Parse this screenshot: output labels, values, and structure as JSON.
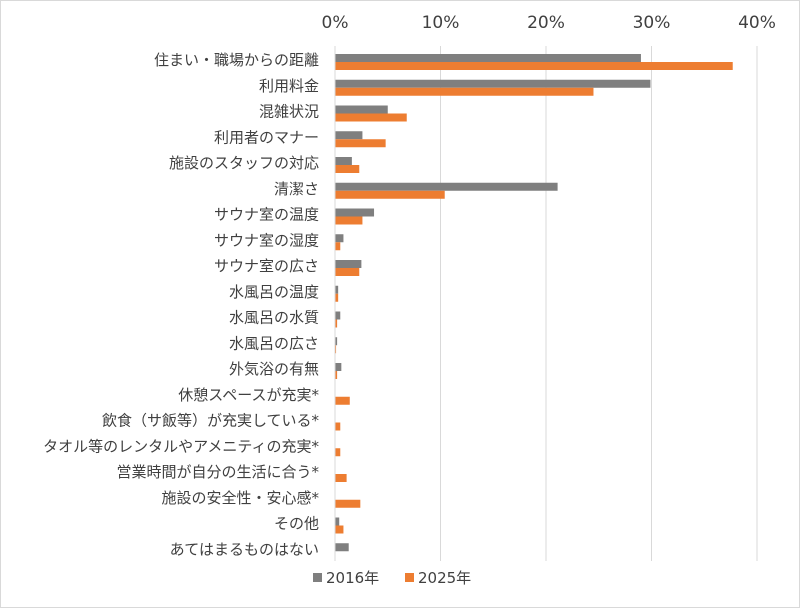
{
  "chart_data": {
    "type": "bar",
    "orientation": "horizontal",
    "categories": [
      "住まい・職場からの距離",
      "利用料金",
      "混雑状況",
      "利用者のマナー",
      "施設のスタッフの対応",
      "清潔さ",
      "サウナ室の温度",
      "サウナ室の湿度",
      "サウナ室の広さ",
      "水風呂の温度",
      "水風呂の水質",
      "水風呂の広さ",
      "外気浴の有無",
      "休憩スペースが充実*",
      "飲食（サ飯等）が充実している*",
      "タオル等のレンタルやアメニティの充実*",
      "営業時間が自分の生活に合う*",
      "施設の安全性・安心感*",
      "その他",
      "あてはまるものはない"
    ],
    "series": [
      {
        "name": "2016年",
        "color": "#7f7f7f",
        "values": [
          29.0,
          29.9,
          5.0,
          2.6,
          1.6,
          21.1,
          3.7,
          0.8,
          2.5,
          0.3,
          0.5,
          0.2,
          0.6,
          0,
          0,
          0,
          0,
          0,
          0.4,
          1.3
        ]
      },
      {
        "name": "2025年",
        "color": "#ed7d31",
        "values": [
          37.7,
          24.5,
          6.8,
          4.8,
          2.3,
          10.4,
          2.6,
          0.5,
          2.3,
          0.3,
          0.2,
          0.1,
          0.2,
          1.4,
          0.5,
          0.5,
          1.1,
          2.4,
          0.8,
          0
        ]
      }
    ],
    "xlim": [
      0,
      40
    ],
    "ticks": [
      "0%",
      "10%",
      "20%",
      "30%",
      "40%"
    ],
    "tick_values": [
      0,
      10,
      20,
      30,
      40
    ],
    "axis_position": "top",
    "grid": true,
    "legend": "bottom"
  }
}
